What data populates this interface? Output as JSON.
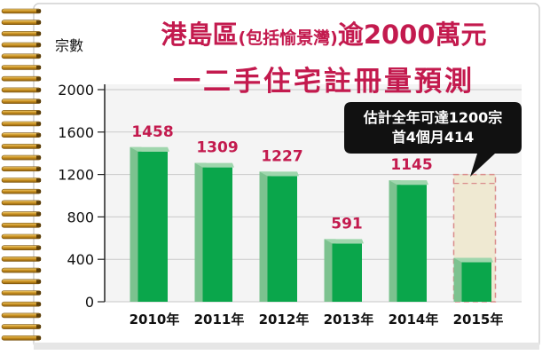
{
  "title": {
    "line1_main": "港島區",
    "line1_paren": "(包括愉景灣)",
    "line1_rest": "逾2000萬元",
    "line2": "一二手住宅註冊量預測"
  },
  "callout": {
    "line1": "估計全年可達1200宗",
    "line2": "首4個月414"
  },
  "colors": {
    "title": "#c31a4e",
    "bar_front": "#0aa64b",
    "bar_side": "#7cc28f",
    "projection_fill": "#efe9d2",
    "projection_border": "#d98b8b",
    "callout_bg": "#111111",
    "label_color": "#c31a4e",
    "binding_wire": "#d4a23a"
  },
  "chart_data": {
    "type": "bar",
    "ylabel": "宗數",
    "ylim": [
      0,
      2000
    ],
    "yticks": [
      0,
      400,
      800,
      1200,
      1600,
      2000
    ],
    "categories": [
      "2010年",
      "2011年",
      "2012年",
      "2013年",
      "2014年",
      "2015年"
    ],
    "series": [
      {
        "values": [
          1458,
          1309,
          1227,
          591,
          1145,
          414
        ]
      }
    ],
    "data_labels": [
      "1458",
      "1309",
      "1227",
      "591",
      "1145",
      ""
    ],
    "projection": {
      "category": "2015年",
      "value": 1200
    },
    "grid": true
  }
}
